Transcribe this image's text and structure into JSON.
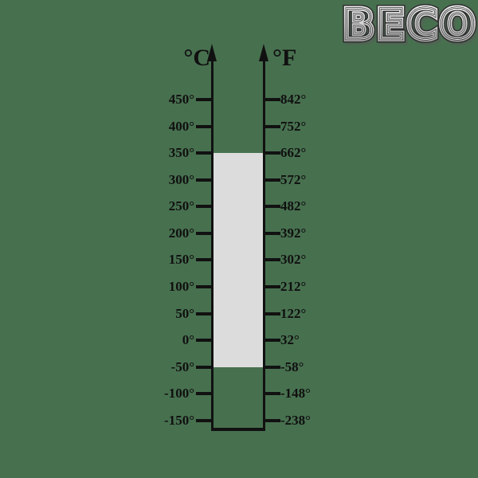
{
  "background_color": "#47704f",
  "logo": {
    "text": "BECO"
  },
  "diagram": {
    "type": "temperature-conversion-scale",
    "left_scale": {
      "unit_label": "°C",
      "ticks": [
        "450°",
        "400°",
        "350°",
        "300°",
        "250°",
        "200°",
        "150°",
        "100°",
        "50°",
        "0°",
        "-50°",
        "-100°",
        "-150°"
      ]
    },
    "right_scale": {
      "unit_label": "°F",
      "ticks": [
        "842°",
        "752°",
        "662°",
        "572°",
        "482°",
        "392°",
        "302°",
        "212°",
        "122°",
        "32°",
        "-58°",
        "-148°",
        "-238°"
      ]
    },
    "highlight_range": {
      "celsius_max": 350,
      "celsius_min": -50,
      "fahrenheit_max": 662,
      "fahrenheit_min": -58,
      "fill_color": "#dcdcdc"
    },
    "line_color": "#111111"
  }
}
